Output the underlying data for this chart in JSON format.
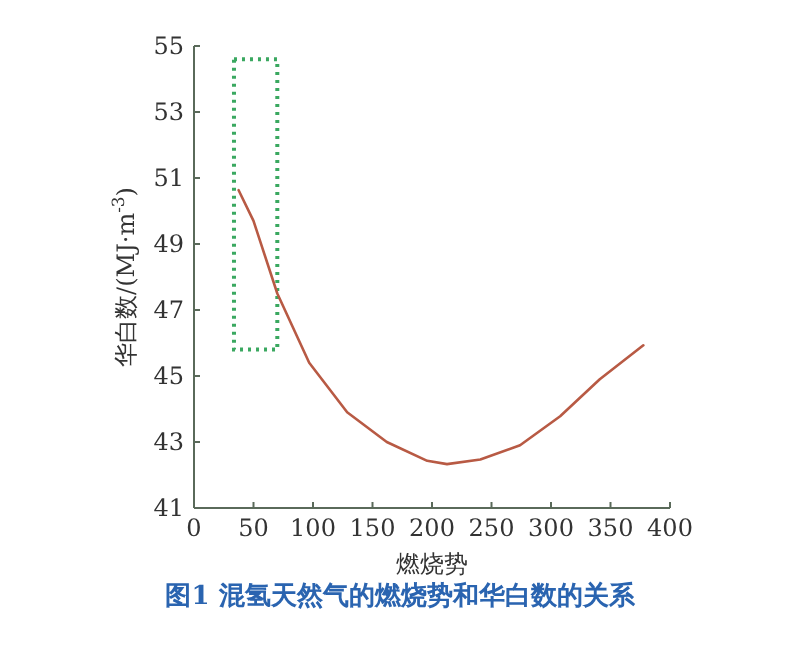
{
  "chart_data": {
    "type": "line",
    "title": "图1  混氢天然气的燃烧势和华白数的关系",
    "xlabel": "燃烧势",
    "ylabel": "华白数/(MJ·m$^{-3}$)",
    "xlim": [
      0,
      400
    ],
    "xticks": [
      0,
      50,
      100,
      150,
      200,
      250,
      300,
      350,
      400
    ],
    "ylim": [
      41,
      55
    ],
    "yticks": [
      41,
      43,
      45,
      47,
      49,
      51,
      53,
      55
    ],
    "marker": "none",
    "series": [
      {
        "color": "#b85a44",
        "x": [
          37.5,
          50,
          70,
          96.8,
          128.7,
          162,
          196,
          212.6,
          240.6,
          274,
          307.7,
          341,
          377.6
        ],
        "values": [
          50.63,
          49.7,
          47.5,
          45.4,
          43.9,
          43.0,
          42.43,
          42.33,
          42.47,
          42.9,
          43.78,
          44.9,
          45.93
        ]
      }
    ]
  }
}
